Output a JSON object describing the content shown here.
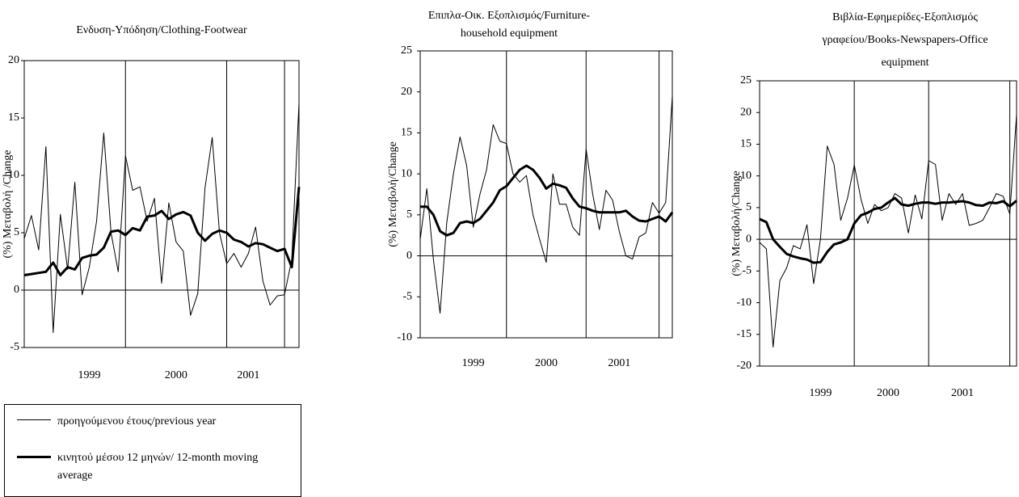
{
  "chart_data": [
    {
      "type": "line",
      "title": [
        "Ενδυση-Υπόδηση/Clothing-Footwear"
      ],
      "y_label": "(%) Μεταβολή /Change",
      "categories": [
        null,
        null,
        null,
        null,
        null,
        null,
        null,
        null,
        null,
        "1999",
        null,
        null,
        null,
        null,
        null,
        null,
        null,
        null,
        null,
        null,
        null,
        "2000",
        null,
        null,
        null,
        null,
        null,
        null,
        null,
        null,
        null,
        "2001",
        null,
        null,
        null,
        null,
        null,
        null,
        null
      ],
      "ylim": [
        -5,
        20
      ],
      "yticks": [
        -5,
        0,
        5,
        10,
        15,
        20
      ],
      "series": [
        {
          "name": "προηγούμενου έτους/previous year",
          "color": "#000000",
          "width": 1,
          "values": [
            4.5,
            6.5,
            3.5,
            12.5,
            -3.7,
            6.6,
            1.8,
            9.4,
            -0.4,
            2,
            6,
            13.7,
            5,
            1.6,
            11.7,
            8.7,
            9,
            6,
            8,
            0.6,
            7.6,
            4.2,
            3.4,
            -2.2,
            -0.3,
            8.9,
            13.3,
            5,
            2.3,
            3.2,
            2,
            3.2,
            5.5,
            0.8,
            -1.3,
            -0.5,
            -0.4,
            2.7,
            16.3
          ]
        },
        {
          "name": "κινητού μέσου 12 μηνών/ 12-month moving average",
          "color": "#000000",
          "width": 3,
          "values": [
            1.3,
            1.4,
            1.5,
            1.6,
            2.4,
            1.3,
            2,
            1.8,
            2.8,
            3,
            3.1,
            3.7,
            5.1,
            5.2,
            4.8,
            5.4,
            5.2,
            6.4,
            6.5,
            6.9,
            6.2,
            6.6,
            6.8,
            6.5,
            5,
            4.3,
            4.9,
            5.2,
            5,
            4.4,
            4.2,
            3.8,
            4.1,
            4,
            3.7,
            3.4,
            3.6,
            2,
            9
          ]
        }
      ]
    },
    {
      "type": "line",
      "title": [
        "Επιπλα-Οικ. Εξοπλισμός/Furniture-",
        "household equipment"
      ],
      "y_label": "(%) Μεταβολή/Change",
      "categories": [
        null,
        null,
        null,
        null,
        null,
        null,
        null,
        null,
        "1999",
        null,
        null,
        null,
        null,
        null,
        null,
        null,
        null,
        null,
        null,
        "2000",
        null,
        null,
        null,
        null,
        null,
        null,
        null,
        null,
        null,
        null,
        "2001",
        null,
        null,
        null,
        null,
        null,
        null,
        null,
        null
      ],
      "ylim": [
        -10,
        25
      ],
      "yticks": [
        -10,
        -5,
        0,
        5,
        10,
        15,
        20,
        25
      ],
      "series": [
        {
          "color": "#000000",
          "width": 1,
          "values": [
            2,
            8.2,
            -0.5,
            -7,
            4,
            10,
            14.5,
            11,
            3.5,
            7.5,
            10.5,
            16,
            14,
            13.7,
            10,
            9,
            9.8,
            5,
            2,
            -0.8,
            10,
            6.3,
            6.3,
            3.5,
            2.5,
            13,
            7.5,
            3.2,
            8,
            6.8,
            3,
            0,
            -0.4,
            2.3,
            2.8,
            6.5,
            5.2,
            6.5,
            19.5
          ]
        },
        {
          "color": "#000000",
          "width": 3,
          "values": [
            6,
            6,
            5,
            3,
            2.5,
            2.8,
            4,
            4.2,
            4,
            4.5,
            5.5,
            6.5,
            8,
            8.5,
            9.5,
            10.5,
            11,
            10.5,
            9.5,
            8.2,
            8.8,
            8.6,
            8.3,
            7,
            6,
            5.8,
            5.5,
            5.3,
            5.3,
            5.3,
            5.3,
            5.5,
            4.8,
            4.3,
            4.2,
            4.5,
            4.8,
            4.2,
            5.3
          ]
        }
      ]
    },
    {
      "type": "line",
      "title": [
        "Βιβλία-Εφημερίδες-Εξοπλισμός",
        "γραφείου/Books-Newspapers-Office",
        "equipment"
      ],
      "y_label": "(%) Μεταβολή/Change",
      "categories": [
        null,
        null,
        null,
        null,
        null,
        null,
        null,
        null,
        null,
        "1999",
        null,
        null,
        null,
        null,
        null,
        null,
        null,
        null,
        null,
        "2000",
        null,
        null,
        null,
        null,
        null,
        null,
        null,
        null,
        null,
        null,
        "2001",
        null,
        null,
        null,
        null,
        null,
        null,
        null,
        null
      ],
      "ylim": [
        -20,
        25
      ],
      "yticks": [
        -20,
        -15,
        -10,
        -5,
        0,
        5,
        10,
        15,
        20,
        25
      ],
      "series": [
        {
          "color": "#000000",
          "width": 1,
          "values": [
            -0.5,
            -1.5,
            -17,
            -6.5,
            -4.5,
            -1,
            -1.5,
            2.3,
            -7,
            0,
            14.7,
            11.8,
            3,
            6.5,
            11.7,
            6.3,
            2.5,
            5.5,
            4.5,
            5,
            7.2,
            6.5,
            1,
            7,
            3.2,
            12.4,
            11.8,
            3,
            7.2,
            5.5,
            7.2,
            2.2,
            2.5,
            3,
            5,
            7.2,
            6.8,
            4,
            19.7
          ]
        },
        {
          "color": "#000000",
          "width": 3,
          "values": [
            3.2,
            2.7,
            0,
            -1.2,
            -2.3,
            -2.7,
            -3,
            -3.2,
            -3.7,
            -3.6,
            -2,
            -0.8,
            -0.5,
            0,
            2.5,
            3.8,
            4.2,
            4.8,
            5,
            5.8,
            6.5,
            5.5,
            5.3,
            5.6,
            5.8,
            5.8,
            5.6,
            5.8,
            5.8,
            5.9,
            6,
            5.8,
            5.4,
            5.3,
            5.8,
            5.7,
            6,
            5.2,
            6.1
          ]
        }
      ]
    }
  ]
}
